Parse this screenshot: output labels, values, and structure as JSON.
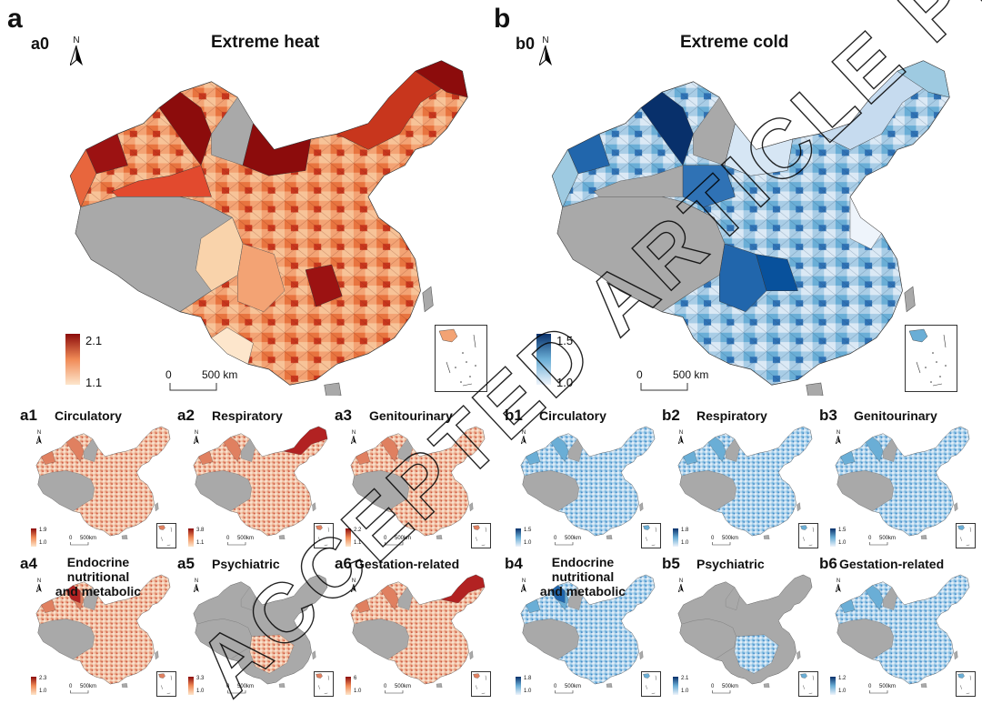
{
  "panels": {
    "a": {
      "letter": "a",
      "main_id": "a0",
      "main_title": "Extreme heat",
      "legend_max": "2.1",
      "legend_min": "1.1",
      "scale_zero": "0",
      "scale_distance": "500 km",
      "colors": {
        "low": "#fde6cc",
        "mid": "#f08a56",
        "high": "#8c0c0c",
        "na": "#a9a9a9"
      },
      "small": [
        {
          "id": "a1",
          "title": "Circulatory",
          "legend_max": "1.9",
          "legend_min": "1.0"
        },
        {
          "id": "a2",
          "title": "Respiratory",
          "legend_max": "3.8",
          "legend_min": "1.1"
        },
        {
          "id": "a3",
          "title": "Genitourinary",
          "legend_max": "2.2",
          "legend_min": "1.1"
        },
        {
          "id": "a4",
          "title_lines": [
            "Endocrine",
            "nutritional",
            "and metabolic"
          ],
          "legend_max": "2.3",
          "legend_min": "1.0"
        },
        {
          "id": "a5",
          "title": "Psychiatric",
          "legend_max": "3.3",
          "legend_min": "1.0"
        },
        {
          "id": "a6",
          "title": "Gestation-related",
          "legend_max": "6",
          "legend_min": "1.0"
        }
      ]
    },
    "b": {
      "letter": "b",
      "main_id": "b0",
      "main_title": "Extreme cold",
      "legend_max": "1.5",
      "legend_min": "1.0",
      "scale_zero": "0",
      "scale_distance": "500 km",
      "colors": {
        "low": "#eef4fb",
        "mid": "#6aaed6",
        "high": "#08306b",
        "na": "#a9a9a9"
      },
      "small": [
        {
          "id": "b1",
          "title": "Circulatory",
          "legend_max": "1.5",
          "legend_min": "1.0"
        },
        {
          "id": "b2",
          "title": "Respiratory",
          "legend_max": "1.8",
          "legend_min": "1.0"
        },
        {
          "id": "b3",
          "title": "Genitourinary",
          "legend_max": "1.5",
          "legend_min": "1.0"
        },
        {
          "id": "b4",
          "title_lines": [
            "Endocrine",
            "nutritional",
            "and metabolic"
          ],
          "legend_max": "1.8",
          "legend_min": "1.0"
        },
        {
          "id": "b5",
          "title": "Psychiatric",
          "legend_max": "2.1",
          "legend_min": "1.0"
        },
        {
          "id": "b6",
          "title": "Gestation-related",
          "legend_max": "1.2",
          "legend_min": "1.0"
        }
      ]
    }
  },
  "small_scale": {
    "zero": "0",
    "distance": "500km"
  },
  "north_label": "N",
  "watermark": "ACCEPTED ARTICLE PREVIEW"
}
